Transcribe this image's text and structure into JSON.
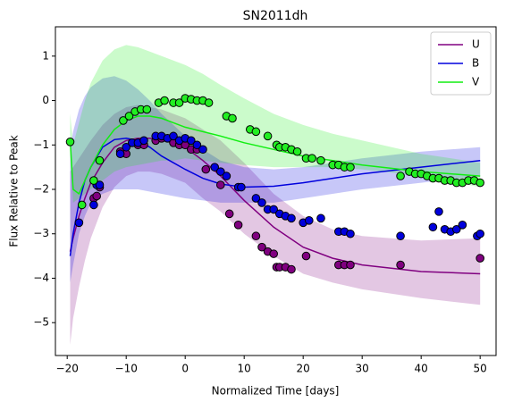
{
  "chart_data": {
    "type": "line",
    "title": "SN2011dh",
    "xlabel": "Normalized Time [days]",
    "ylabel": "Flux Relative to Peak",
    "xlim": [
      -22,
      52.7
    ],
    "ylim": [
      -5.74,
      1.66
    ],
    "xticks": [
      {
        "value": -20,
        "label": "−20"
      },
      {
        "value": -10,
        "label": "−10"
      },
      0,
      10,
      20,
      30,
      40,
      50
    ],
    "yticks": [
      {
        "value": -5,
        "label": "−5"
      },
      {
        "value": -4,
        "label": "−4"
      },
      {
        "value": -3,
        "label": "−3"
      },
      {
        "value": -2,
        "label": "−2"
      },
      {
        "value": -1,
        "label": "−1"
      },
      0,
      1
    ],
    "legend": "upper right",
    "x": [
      -19.5,
      -19,
      -18,
      -17,
      -16,
      -14,
      -12,
      -10,
      -8,
      -6,
      -4,
      -2,
      0,
      3,
      6,
      10,
      15,
      20,
      25,
      30,
      40,
      50
    ],
    "series": [
      {
        "name": "U",
        "color": "#800080",
        "values": [
          -3.4,
          -3.1,
          -2.6,
          -2.2,
          -1.85,
          -1.4,
          -1.05,
          -0.9,
          -0.85,
          -0.85,
          -0.9,
          -0.95,
          -1.05,
          -1.35,
          -1.7,
          -2.25,
          -2.85,
          -3.3,
          -3.55,
          -3.7,
          -3.85,
          -3.9
        ],
        "lower": [
          -5.5,
          -4.9,
          -4.2,
          -3.6,
          -3.1,
          -2.4,
          -1.95,
          -1.7,
          -1.6,
          -1.6,
          -1.65,
          -1.75,
          -1.85,
          -2.2,
          -2.5,
          -3.0,
          -3.5,
          -3.9,
          -4.1,
          -4.25,
          -4.45,
          -4.6
        ],
        "upper": [
          -1.6,
          -1.5,
          -1.3,
          -1.1,
          -0.9,
          -0.55,
          -0.3,
          -0.15,
          -0.1,
          -0.15,
          -0.2,
          -0.3,
          -0.4,
          -0.65,
          -0.9,
          -1.4,
          -2.1,
          -2.6,
          -2.9,
          -3.05,
          -3.15,
          -3.1
        ]
      },
      {
        "name": "B",
        "color": "#0000dd",
        "values": [
          -3.5,
          -3.0,
          -2.3,
          -1.8,
          -1.5,
          -1.05,
          -0.88,
          -0.85,
          -0.9,
          -1.05,
          -1.25,
          -1.4,
          -1.55,
          -1.75,
          -1.88,
          -1.95,
          -1.93,
          -1.85,
          -1.75,
          -1.65,
          -1.5,
          -1.35
        ],
        "lower": [
          -4.1,
          -3.7,
          -3.0,
          -2.6,
          -2.3,
          -2.1,
          -2.0,
          -2.0,
          -2.0,
          -2.05,
          -2.1,
          -2.15,
          -2.2,
          -2.25,
          -2.3,
          -2.3,
          -2.3,
          -2.2,
          -2.1,
          -2.0,
          -1.85,
          -1.7
        ],
        "upper": [
          -1.1,
          -0.7,
          -0.2,
          0.1,
          0.3,
          0.5,
          0.55,
          0.45,
          0.25,
          0.0,
          -0.3,
          -0.55,
          -0.8,
          -1.1,
          -1.35,
          -1.5,
          -1.55,
          -1.5,
          -1.4,
          -1.3,
          -1.15,
          -1.05
        ]
      },
      {
        "name": "V",
        "color": "#11ee11",
        "values": [
          -0.9,
          -2.0,
          -2.1,
          -1.8,
          -1.5,
          -1.0,
          -0.65,
          -0.45,
          -0.35,
          -0.35,
          -0.4,
          -0.5,
          -0.6,
          -0.7,
          -0.8,
          -0.95,
          -1.1,
          -1.25,
          -1.35,
          -1.45,
          -1.6,
          -1.7
        ],
        "lower": [
          -1.2,
          -2.3,
          -2.2,
          -2.1,
          -2.0,
          -1.8,
          -1.6,
          -1.5,
          -1.45,
          -1.4,
          -1.35,
          -1.35,
          -1.3,
          -1.35,
          -1.4,
          -1.45,
          -1.5,
          -1.5,
          -1.5,
          -1.55,
          -1.7,
          -1.95
        ],
        "upper": [
          -0.3,
          -1.0,
          -0.5,
          0.0,
          0.4,
          0.9,
          1.15,
          1.25,
          1.2,
          1.1,
          1.0,
          0.9,
          0.8,
          0.6,
          0.35,
          0.05,
          -0.3,
          -0.55,
          -0.75,
          -0.9,
          -1.2,
          -1.4
        ]
      }
    ],
    "points": [
      {
        "color": "#800080",
        "x": [
          -15.5,
          -15,
          -14.5,
          -11,
          -10,
          -8,
          -7,
          -5,
          -4,
          -2,
          -1,
          0,
          1,
          2,
          3.5,
          6,
          7.5,
          9,
          12,
          13,
          14,
          15,
          15.5,
          16,
          17,
          18,
          20.5,
          26,
          27,
          28,
          36.5,
          50
        ],
        "values": [
          -2.2,
          -2.15,
          -1.95,
          -1.15,
          -1.2,
          -1.0,
          -1.0,
          -0.9,
          -0.85,
          -0.95,
          -1.0,
          -1.0,
          -1.1,
          -1.1,
          -1.55,
          -1.9,
          -2.55,
          -2.8,
          -3.05,
          -3.3,
          -3.4,
          -3.45,
          -3.75,
          -3.75,
          -3.75,
          -3.8,
          -3.5,
          -3.7,
          -3.7,
          -3.7,
          -3.7,
          -3.55
        ]
      },
      {
        "color": "#0000dd",
        "x": [
          -18,
          -15.5,
          -15,
          -14.5,
          -11,
          -10,
          -9,
          -8,
          -7,
          -5,
          -4,
          -3,
          -2,
          -1,
          0,
          1,
          2,
          3,
          5,
          6,
          7,
          9,
          9.5,
          12,
          13,
          14,
          15,
          16,
          17,
          18,
          20,
          21,
          23,
          26,
          27,
          28,
          36.5,
          42,
          43,
          44,
          45,
          46,
          47,
          49.5,
          50
        ],
        "values": [
          -2.75,
          -2.35,
          -1.9,
          -1.9,
          -1.2,
          -1.05,
          -0.95,
          -0.95,
          -0.9,
          -0.8,
          -0.8,
          -0.85,
          -0.8,
          -0.9,
          -0.85,
          -0.9,
          -1.0,
          -1.1,
          -1.5,
          -1.6,
          -1.7,
          -1.95,
          -1.95,
          -2.2,
          -2.3,
          -2.45,
          -2.45,
          -2.55,
          -2.6,
          -2.65,
          -2.75,
          -2.7,
          -2.65,
          -2.95,
          -2.95,
          -3.0,
          -3.05,
          -2.85,
          -2.5,
          -2.9,
          -2.95,
          -2.9,
          -2.8,
          -3.05,
          -3.0
        ]
      },
      {
        "color": "#22ee22",
        "x": [
          -19.5,
          -17.5,
          -15.5,
          -14.5,
          -10.5,
          -9.5,
          -8.5,
          -7.5,
          -6.5,
          -4.5,
          -3.5,
          -2,
          -1,
          0,
          1,
          2,
          3,
          4,
          7,
          8,
          11,
          12,
          14,
          15.5,
          16,
          17,
          18,
          19,
          20.5,
          21.5,
          23,
          25,
          26,
          27,
          28,
          36.5,
          38,
          39,
          40,
          41,
          42,
          43,
          44,
          45,
          46,
          47,
          48,
          49,
          50
        ],
        "values": [
          -0.93,
          -2.35,
          -1.8,
          -1.35,
          -0.45,
          -0.35,
          -0.25,
          -0.2,
          -0.2,
          -0.05,
          0.0,
          -0.05,
          -0.05,
          0.05,
          0.03,
          0.0,
          0.0,
          -0.05,
          -0.35,
          -0.4,
          -0.65,
          -0.7,
          -0.8,
          -1.0,
          -1.05,
          -1.05,
          -1.1,
          -1.15,
          -1.3,
          -1.3,
          -1.35,
          -1.45,
          -1.45,
          -1.5,
          -1.5,
          -1.7,
          -1.6,
          -1.65,
          -1.65,
          -1.7,
          -1.75,
          -1.75,
          -1.8,
          -1.8,
          -1.85,
          -1.85,
          -1.8,
          -1.8,
          -1.85
        ]
      }
    ]
  }
}
